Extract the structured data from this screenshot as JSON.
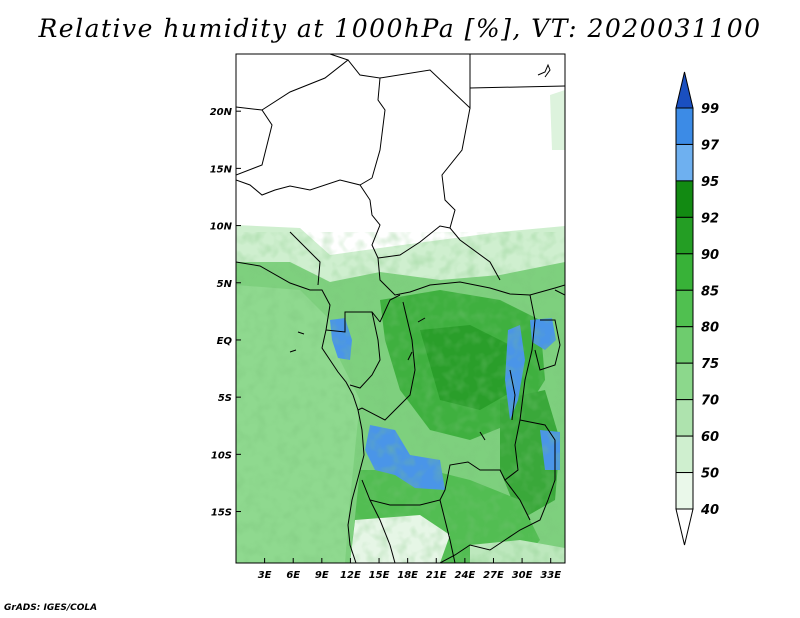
{
  "title": "Relative humidity at 1000hPa [%], VT: 2020031100",
  "credit": "GrADS: IGES/COLA",
  "map": {
    "lat_labels": [
      "20N",
      "15N",
      "10N",
      "5N",
      "EQ",
      "5S",
      "10S",
      "15S"
    ],
    "lon_labels": [
      "3E",
      "6E",
      "9E",
      "12E",
      "15E",
      "18E",
      "21E",
      "24E",
      "27E",
      "30E",
      "33E"
    ],
    "lat_range": [
      -19.5,
      25
    ],
    "lon_range": [
      0,
      34.5
    ]
  },
  "colorbar": {
    "levels": [
      "99",
      "97",
      "95",
      "92",
      "90",
      "85",
      "80",
      "75",
      "70",
      "60",
      "50",
      "40"
    ],
    "colors": [
      "#1f5fd0",
      "#3c8be6",
      "#6eb0f0",
      "#128a12",
      "#249e24",
      "#38b238",
      "#50c050",
      "#6ecc6e",
      "#8cd88c",
      "#aee3ae",
      "#cfefcf",
      "#eaf8ea",
      "#ffffff"
    ],
    "top_color": "#1a4fc0"
  }
}
